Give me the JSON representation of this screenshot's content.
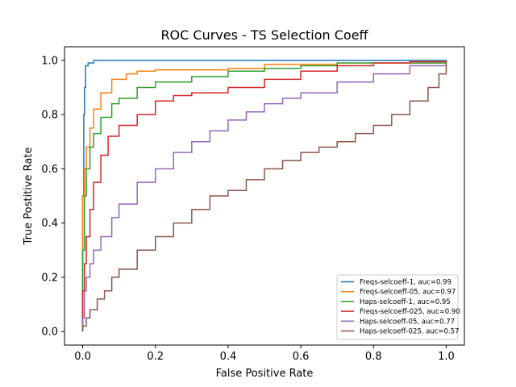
{
  "chart_data": {
    "type": "line",
    "title": "ROC Curves - TS Selection Coeff",
    "xlabel": "False Positive Rate",
    "ylabel": "True Postitive Rate",
    "xlim": [
      -0.05,
      1.05
    ],
    "ylim": [
      -0.05,
      1.05
    ],
    "xticks": [
      0.0,
      0.2,
      0.4,
      0.6,
      0.8,
      1.0
    ],
    "yticks": [
      0.0,
      0.2,
      0.4,
      0.6,
      0.8,
      1.0
    ],
    "xtick_labels": [
      "0.0",
      "0.2",
      "0.4",
      "0.6",
      "0.8",
      "1.0"
    ],
    "ytick_labels": [
      "0.0",
      "0.2",
      "0.4",
      "0.6",
      "0.8",
      "1.0"
    ],
    "grid": false,
    "legend_position": "lower-right",
    "series": [
      {
        "name": "Freqs-selcoeff-1, auc=0.99",
        "color": "#1f77b4",
        "points": [
          [
            0,
            0
          ],
          [
            0,
            0.5
          ],
          [
            0.003,
            0.8
          ],
          [
            0.005,
            0.9
          ],
          [
            0.008,
            0.98
          ],
          [
            0.015,
            0.99
          ],
          [
            0.03,
            1.0
          ],
          [
            0.4,
            1.0
          ],
          [
            0.42,
            1.0
          ],
          [
            1,
            1.0
          ]
        ]
      },
      {
        "name": "Freqs-selcoeff-05, auc=0.97",
        "color": "#ff7f0e",
        "points": [
          [
            0,
            0
          ],
          [
            0,
            0.5
          ],
          [
            0.005,
            0.6
          ],
          [
            0.01,
            0.68
          ],
          [
            0.02,
            0.75
          ],
          [
            0.03,
            0.82
          ],
          [
            0.05,
            0.88
          ],
          [
            0.08,
            0.93
          ],
          [
            0.12,
            0.95
          ],
          [
            0.15,
            0.96
          ],
          [
            0.2,
            0.965
          ],
          [
            0.4,
            0.97
          ],
          [
            0.5,
            0.985
          ],
          [
            0.7,
            0.99
          ],
          [
            1,
            1.0
          ]
        ]
      },
      {
        "name": "Haps-selcoeff-1, auc=0.95",
        "color": "#2ca02c",
        "points": [
          [
            0,
            0
          ],
          [
            0,
            0.3
          ],
          [
            0.005,
            0.5
          ],
          [
            0.01,
            0.6
          ],
          [
            0.02,
            0.68
          ],
          [
            0.03,
            0.73
          ],
          [
            0.05,
            0.79
          ],
          [
            0.08,
            0.84
          ],
          [
            0.1,
            0.86
          ],
          [
            0.15,
            0.9
          ],
          [
            0.2,
            0.92
          ],
          [
            0.3,
            0.94
          ],
          [
            0.4,
            0.96
          ],
          [
            0.5,
            0.97
          ],
          [
            0.6,
            0.98
          ],
          [
            0.7,
            0.99
          ],
          [
            1,
            1.0
          ]
        ]
      },
      {
        "name": "Freqs-selcoeff-025, auc=0.90",
        "color": "#d62728",
        "points": [
          [
            0,
            0
          ],
          [
            0,
            0.15
          ],
          [
            0.005,
            0.25
          ],
          [
            0.01,
            0.35
          ],
          [
            0.02,
            0.45
          ],
          [
            0.03,
            0.55
          ],
          [
            0.05,
            0.65
          ],
          [
            0.07,
            0.72
          ],
          [
            0.1,
            0.76
          ],
          [
            0.15,
            0.8
          ],
          [
            0.2,
            0.85
          ],
          [
            0.25,
            0.87
          ],
          [
            0.3,
            0.88
          ],
          [
            0.4,
            0.9
          ],
          [
            0.5,
            0.93
          ],
          [
            0.6,
            0.96
          ],
          [
            0.7,
            0.98
          ],
          [
            0.8,
            0.99
          ],
          [
            0.9,
            0.995
          ],
          [
            1,
            1.0
          ]
        ]
      },
      {
        "name": "Haps-selcoeff-05, auc=0.77",
        "color": "#9467bd",
        "points": [
          [
            0,
            0
          ],
          [
            0,
            0.05
          ],
          [
            0.005,
            0.15
          ],
          [
            0.01,
            0.2
          ],
          [
            0.02,
            0.25
          ],
          [
            0.03,
            0.3
          ],
          [
            0.05,
            0.35
          ],
          [
            0.08,
            0.42
          ],
          [
            0.1,
            0.47
          ],
          [
            0.15,
            0.55
          ],
          [
            0.2,
            0.6
          ],
          [
            0.25,
            0.66
          ],
          [
            0.3,
            0.7
          ],
          [
            0.35,
            0.74
          ],
          [
            0.4,
            0.78
          ],
          [
            0.45,
            0.81
          ],
          [
            0.5,
            0.84
          ],
          [
            0.55,
            0.86
          ],
          [
            0.6,
            0.88
          ],
          [
            0.7,
            0.92
          ],
          [
            0.8,
            0.95
          ],
          [
            0.9,
            0.98
          ],
          [
            1,
            1.0
          ]
        ]
      },
      {
        "name": "Haps-selcoeff-025, auc=0.57",
        "color": "#8c564b",
        "points": [
          [
            0,
            0
          ],
          [
            0,
            0.02
          ],
          [
            0.01,
            0.05
          ],
          [
            0.02,
            0.08
          ],
          [
            0.04,
            0.12
          ],
          [
            0.06,
            0.15
          ],
          [
            0.08,
            0.2
          ],
          [
            0.1,
            0.23
          ],
          [
            0.15,
            0.3
          ],
          [
            0.2,
            0.35
          ],
          [
            0.25,
            0.4
          ],
          [
            0.3,
            0.45
          ],
          [
            0.35,
            0.5
          ],
          [
            0.4,
            0.52
          ],
          [
            0.45,
            0.56
          ],
          [
            0.5,
            0.6
          ],
          [
            0.55,
            0.63
          ],
          [
            0.6,
            0.66
          ],
          [
            0.65,
            0.68
          ],
          [
            0.7,
            0.7
          ],
          [
            0.75,
            0.73
          ],
          [
            0.8,
            0.76
          ],
          [
            0.85,
            0.8
          ],
          [
            0.9,
            0.85
          ],
          [
            0.95,
            0.9
          ],
          [
            0.98,
            0.95
          ],
          [
            1,
            1.0
          ]
        ]
      }
    ]
  }
}
